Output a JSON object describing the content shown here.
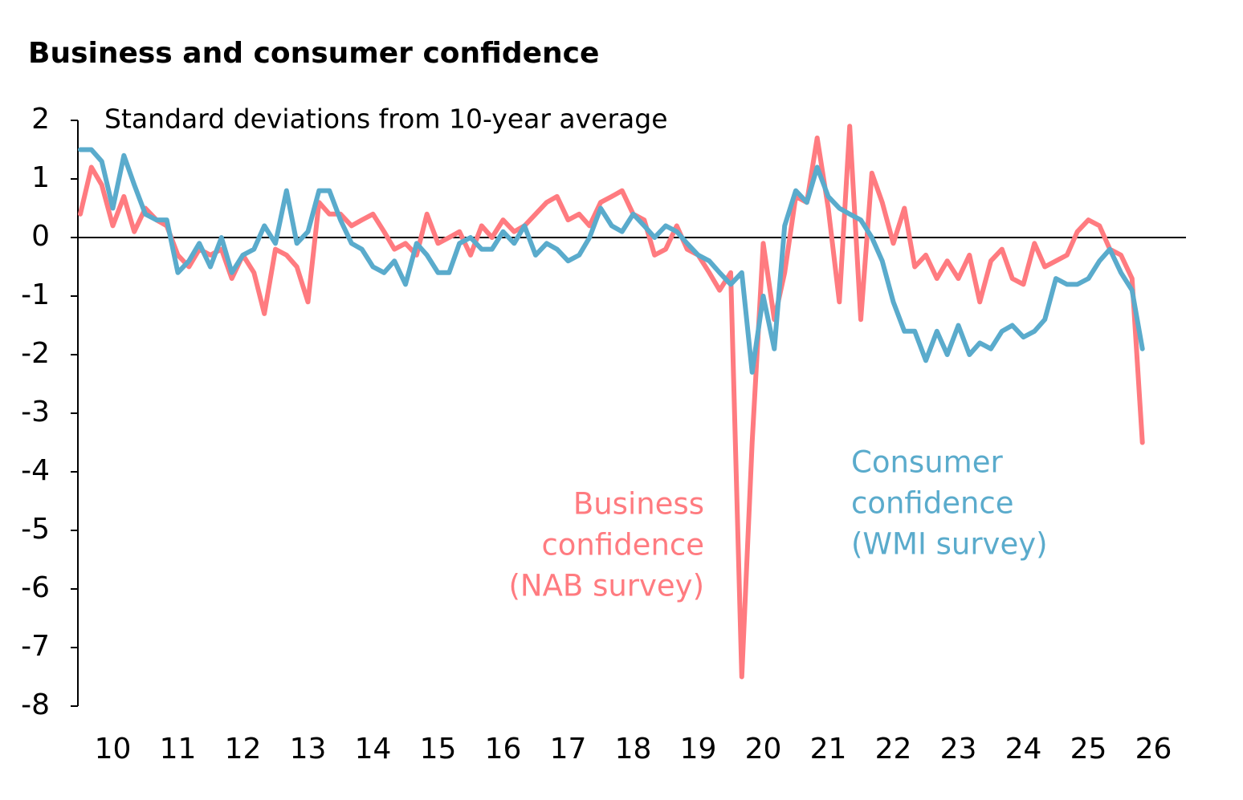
{
  "chart_data": {
    "type": "line",
    "title": "Business and consumer confidence",
    "ylabel": "Standard deviations from 10-year average",
    "x": [
      10,
      10.17,
      10.33,
      10.5,
      10.67,
      10.83,
      11,
      11.17,
      11.33,
      11.5,
      11.67,
      11.83,
      12,
      12.17,
      12.33,
      12.5,
      12.67,
      12.83,
      13,
      13.17,
      13.33,
      13.5,
      13.67,
      13.83,
      14,
      14.17,
      14.33,
      14.5,
      14.67,
      14.83,
      15,
      15.17,
      15.33,
      15.5,
      15.67,
      15.83,
      16,
      16.17,
      16.33,
      16.5,
      16.67,
      16.83,
      17,
      17.17,
      17.33,
      17.5,
      17.67,
      17.83,
      18,
      18.17,
      18.33,
      18.5,
      18.67,
      18.83,
      19,
      19.17,
      19.33,
      19.5,
      19.67,
      19.83,
      20,
      20.17,
      20.33,
      20.5,
      20.67,
      20.83,
      21,
      21.17,
      21.33,
      21.5,
      21.67,
      21.83,
      22,
      22.17,
      22.33,
      22.5,
      22.67,
      22.83,
      23,
      23.17,
      23.33,
      23.5,
      23.67,
      23.83,
      24,
      24.17,
      24.33,
      24.5,
      24.67,
      24.83,
      25,
      25.17,
      25.33,
      25.5,
      25.67,
      25.83,
      26,
      26.17,
      26.33
    ],
    "series": [
      {
        "name": "Business confidence (NAB survey)",
        "color": "#ff7b80",
        "values": [
          0.4,
          1.2,
          0.9,
          0.2,
          0.7,
          0.1,
          0.5,
          0.3,
          0.2,
          -0.3,
          -0.5,
          -0.2,
          -0.3,
          -0.2,
          -0.7,
          -0.3,
          -0.6,
          -1.3,
          -0.2,
          -0.3,
          -0.5,
          -1.1,
          0.6,
          0.4,
          0.4,
          0.2,
          0.3,
          0.4,
          0.1,
          -0.2,
          -0.1,
          -0.3,
          0.4,
          -0.1,
          0.0,
          0.1,
          -0.3,
          0.2,
          0.0,
          0.3,
          0.1,
          0.2,
          0.4,
          0.6,
          0.7,
          0.3,
          0.4,
          0.2,
          0.6,
          0.7,
          0.8,
          0.4,
          0.3,
          -0.3,
          -0.2,
          0.2,
          -0.2,
          -0.3,
          -0.6,
          -0.9,
          -0.6,
          -7.5,
          -3.5,
          -0.1,
          -1.4,
          -0.6,
          0.7,
          0.6,
          1.7,
          0.5,
          -1.1,
          1.9,
          -1.4,
          1.1,
          0.6,
          -0.1,
          0.5,
          -0.5,
          -0.3,
          -0.7,
          -0.4,
          -0.7,
          -0.3,
          -1.1,
          -0.4,
          -0.2,
          -0.7,
          -0.8,
          -0.1,
          -0.5,
          -0.4,
          -0.3,
          0.1,
          0.3,
          0.2,
          -0.2,
          -0.3,
          -0.7,
          -3.5
        ]
      },
      {
        "name": "Consumer confidence (WMI survey)",
        "color": "#5aabcc",
        "values": [
          1.5,
          1.5,
          1.3,
          0.5,
          1.4,
          0.9,
          0.4,
          0.3,
          0.3,
          -0.6,
          -0.4,
          -0.1,
          -0.5,
          0.0,
          -0.6,
          -0.3,
          -0.2,
          0.2,
          -0.1,
          0.8,
          -0.1,
          0.1,
          0.8,
          0.8,
          0.3,
          -0.1,
          -0.2,
          -0.5,
          -0.6,
          -0.4,
          -0.8,
          -0.1,
          -0.3,
          -0.6,
          -0.6,
          -0.1,
          0.0,
          -0.2,
          -0.2,
          0.1,
          -0.1,
          0.2,
          -0.3,
          -0.1,
          -0.2,
          -0.4,
          -0.3,
          0.0,
          0.5,
          0.2,
          0.1,
          0.4,
          0.2,
          0.0,
          0.2,
          0.1,
          -0.1,
          -0.3,
          -0.4,
          -0.6,
          -0.8,
          -0.6,
          -2.3,
          -1.0,
          -1.9,
          0.2,
          0.8,
          0.6,
          1.2,
          0.7,
          0.5,
          0.4,
          0.3,
          0.0,
          -0.4,
          -1.1,
          -1.6,
          -1.6,
          -2.1,
          -1.6,
          -2.0,
          -1.5,
          -2.0,
          -1.8,
          -1.9,
          -1.6,
          -1.5,
          -1.7,
          -1.6,
          -1.4,
          -0.7,
          -0.8,
          -0.8,
          -0.7,
          -0.4,
          -0.2,
          -0.6,
          -0.9,
          -1.9
        ]
      }
    ],
    "annotations": [
      {
        "lines": [
          "Business",
          "confidence",
          "(NAB survey)"
        ],
        "color": "#ff7b80"
      },
      {
        "lines": [
          "Consumer",
          "confidence",
          "(WMI survey)"
        ],
        "color": "#5aabcc"
      }
    ],
    "xlim": [
      10,
      27
    ],
    "xticks": [
      {
        "value": 10.5,
        "label": "10"
      },
      {
        "value": 11.5,
        "label": "11"
      },
      {
        "value": 12.5,
        "label": "12"
      },
      {
        "value": 13.5,
        "label": "13"
      },
      {
        "value": 14.5,
        "label": "14"
      },
      {
        "value": 15.5,
        "label": "15"
      },
      {
        "value": 16.5,
        "label": "16"
      },
      {
        "value": 17.5,
        "label": "17"
      },
      {
        "value": 18.5,
        "label": "18"
      },
      {
        "value": 19.5,
        "label": "19"
      },
      {
        "value": 20.5,
        "label": "20"
      },
      {
        "value": 21.5,
        "label": "21"
      },
      {
        "value": 22.5,
        "label": "22"
      },
      {
        "value": 23.5,
        "label": "23"
      },
      {
        "value": 24.5,
        "label": "24"
      },
      {
        "value": 25.5,
        "label": "25"
      },
      {
        "value": 26.5,
        "label": "26"
      }
    ],
    "ylim": [
      -8,
      2
    ],
    "yticks": [
      2,
      1,
      0,
      -1,
      -2,
      -3,
      -4,
      -5,
      -6,
      -7,
      -8
    ],
    "grid": false
  }
}
